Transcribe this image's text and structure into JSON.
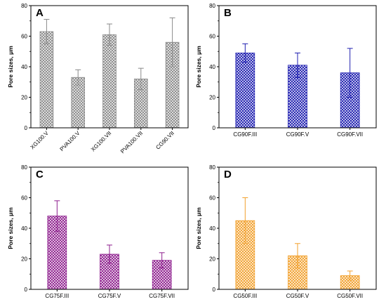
{
  "chart_data": [
    {
      "type": "bar",
      "panel_label": "A",
      "ylabel": "Pore sizes, μm",
      "ylim": [
        0,
        80
      ],
      "yticks": [
        "0",
        "20",
        "40",
        "60",
        "80"
      ],
      "categories": [
        "XG100.V",
        "PVA100.V",
        "XG100.VII",
        "PVA100.VII",
        "CG90.VII"
      ],
      "values": [
        63,
        33,
        61,
        32,
        56
      ],
      "errors": [
        8,
        5,
        7,
        7,
        16
      ],
      "tick_labels_rotated": true,
      "color": "#8a8a8a",
      "grid": false
    },
    {
      "type": "bar",
      "panel_label": "B",
      "ylabel": "Pore sizes, μm",
      "ylim": [
        0,
        80
      ],
      "yticks": [
        "0",
        "20",
        "40",
        "60",
        "80"
      ],
      "categories": [
        "CG90F.III",
        "CG90F.V",
        "CG90F.VII"
      ],
      "values": [
        49,
        41,
        36
      ],
      "errors": [
        6,
        8,
        16
      ],
      "tick_labels_rotated": false,
      "color": "#1f1fb0",
      "grid": false
    },
    {
      "type": "bar",
      "panel_label": "C",
      "ylabel": "Pore sizes, μm",
      "ylim": [
        0,
        80
      ],
      "yticks": [
        "0",
        "20",
        "40",
        "60",
        "80"
      ],
      "categories": [
        "CG75F.III",
        "CG75F.V",
        "CG75F.VII"
      ],
      "values": [
        48,
        23,
        19
      ],
      "errors": [
        10,
        6,
        5
      ],
      "tick_labels_rotated": false,
      "color": "#8e1f8e",
      "grid": false
    },
    {
      "type": "bar",
      "panel_label": "D",
      "ylabel": "Pore sizes, μm",
      "ylim": [
        0,
        80
      ],
      "yticks": [
        "0",
        "20",
        "40",
        "60",
        "80"
      ],
      "categories": [
        "CG50F.III",
        "CG50F.V",
        "CG50F.VII"
      ],
      "values": [
        45,
        22,
        9
      ],
      "errors": [
        15,
        8,
        3
      ],
      "tick_labels_rotated": false,
      "color": "#f2a12e",
      "grid": false
    }
  ]
}
